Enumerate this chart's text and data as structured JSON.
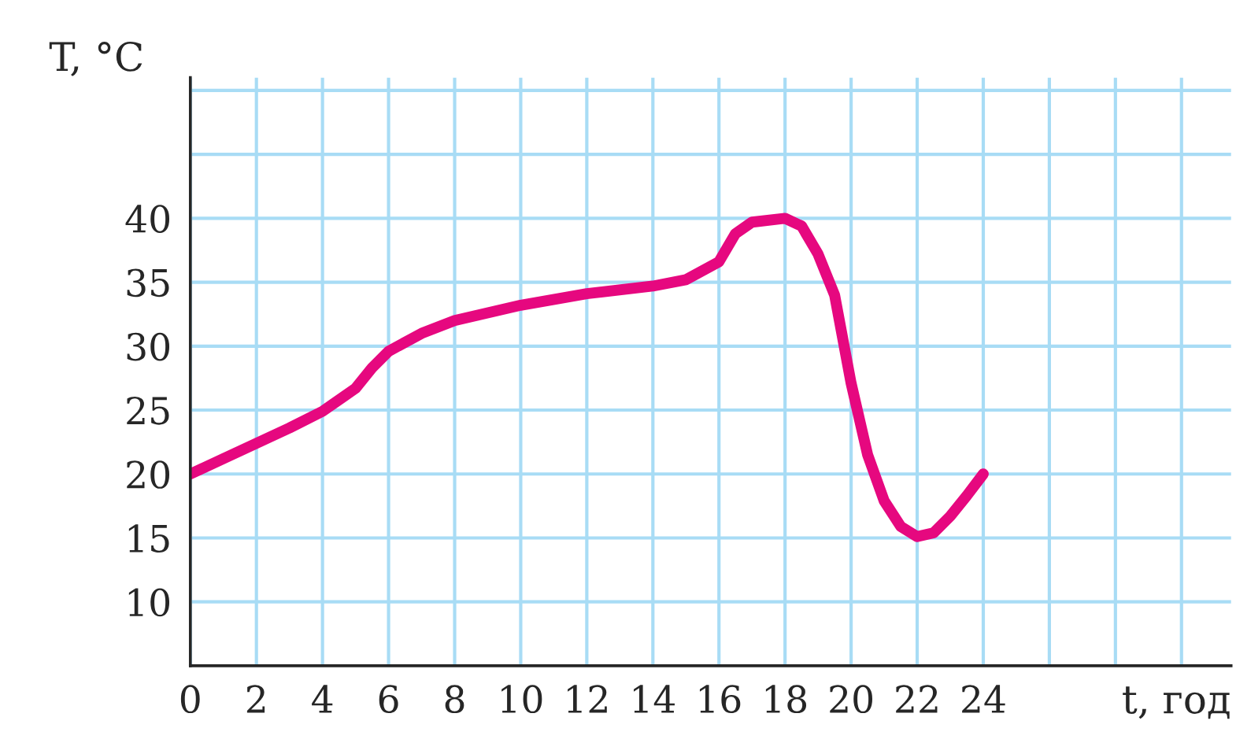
{
  "chart_data": {
    "type": "line",
    "xlabel": "t, год",
    "ylabel": "T, °C",
    "x": [
      0,
      1,
      2,
      3,
      4,
      5,
      5.5,
      6,
      7,
      8,
      10,
      12,
      14,
      15,
      16,
      16.5,
      17,
      18,
      18.5,
      19,
      19.5,
      20,
      20.5,
      21,
      21.5,
      22,
      22.5,
      23,
      23.5,
      24
    ],
    "series": [
      {
        "color": "#e6087f",
        "values": [
          20,
          21.2,
          22.4,
          23.6,
          24.9,
          26.7,
          28.3,
          29.6,
          31,
          32,
          33.2,
          34.1,
          34.7,
          35.2,
          36.6,
          38.8,
          39.7,
          40,
          39.4,
          37.2,
          34,
          27.1,
          21.5,
          17.9,
          15.9,
          15.1,
          15.4,
          16.7,
          18.3,
          20
        ]
      }
    ],
    "xlim": [
      0,
      31.5
    ],
    "ylim": [
      5,
      51
    ],
    "xticks": [
      {
        "value": 0,
        "label": "0"
      },
      2,
      4,
      6,
      8,
      10,
      12,
      14,
      16,
      18,
      20,
      22,
      24,
      {
        "value": 26,
        "label": null
      },
      {
        "value": 28,
        "label": null
      },
      {
        "value": 30,
        "label": null
      }
    ],
    "yticks": [
      10,
      15,
      20,
      25,
      30,
      35,
      40,
      {
        "value": 45,
        "label": null
      },
      {
        "value": 50,
        "label": null
      }
    ],
    "grid": true,
    "legend": false,
    "marker": "none",
    "line_style": "solid"
  }
}
